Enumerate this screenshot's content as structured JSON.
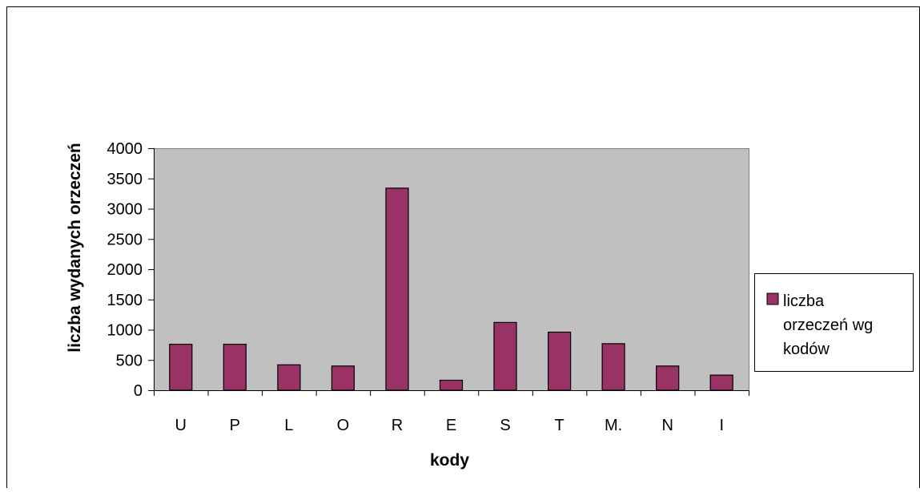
{
  "chart_data": {
    "type": "bar",
    "title": "",
    "xlabel": "kody",
    "ylabel": "liczba wydanych orzeczeń",
    "ylim": [
      0,
      4000
    ],
    "yticks": [
      "0",
      "500",
      "1000",
      "1500",
      "2000",
      "2500",
      "3000",
      "3500",
      "4000"
    ],
    "categories": [
      "U",
      "P",
      "L",
      "O",
      "R",
      "E",
      "S",
      "T",
      "M.",
      "N",
      "I"
    ],
    "series": [
      {
        "name": "liczba orzeczeń wg kodów",
        "values": [
          760,
          760,
          420,
          400,
          3340,
          165,
          1120,
          960,
          770,
          400,
          250
        ],
        "color": "#993366"
      }
    ],
    "legend": {
      "position": "right",
      "lines": [
        "liczba",
        "orzeczeń wg",
        "kodów"
      ]
    },
    "plot_background": "#c0c0c0",
    "grid": false
  }
}
